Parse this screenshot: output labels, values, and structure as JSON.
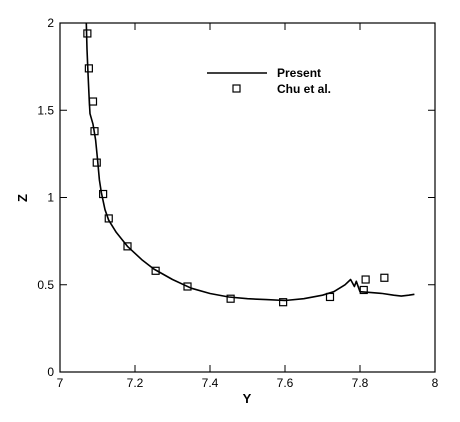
{
  "chart_data": {
    "type": "line",
    "title": "",
    "xlabel": "Y",
    "ylabel": "Z",
    "xlim": [
      7,
      8
    ],
    "ylim": [
      0,
      2
    ],
    "x_ticks": [
      7,
      7.2,
      7.4,
      7.6,
      7.8,
      8
    ],
    "y_ticks": [
      0,
      0.5,
      1,
      1.5,
      2
    ],
    "grid": false,
    "legend_position": "top-right",
    "series": [
      {
        "name": "Present",
        "style": "line",
        "color": "#000000",
        "points": [
          [
            7.07,
            2.0
          ],
          [
            7.072,
            1.85
          ],
          [
            7.075,
            1.7
          ],
          [
            7.078,
            1.55
          ],
          [
            7.08,
            1.48
          ],
          [
            7.088,
            1.42
          ],
          [
            7.095,
            1.33
          ],
          [
            7.1,
            1.22
          ],
          [
            7.105,
            1.1
          ],
          [
            7.11,
            1.03
          ],
          [
            7.12,
            0.93
          ],
          [
            7.13,
            0.87
          ],
          [
            7.15,
            0.8
          ],
          [
            7.18,
            0.72
          ],
          [
            7.22,
            0.64
          ],
          [
            7.25,
            0.59
          ],
          [
            7.3,
            0.53
          ],
          [
            7.35,
            0.48
          ],
          [
            7.4,
            0.45
          ],
          [
            7.45,
            0.43
          ],
          [
            7.5,
            0.42
          ],
          [
            7.55,
            0.415
          ],
          [
            7.6,
            0.41
          ],
          [
            7.65,
            0.42
          ],
          [
            7.7,
            0.44
          ],
          [
            7.73,
            0.46
          ],
          [
            7.76,
            0.5
          ],
          [
            7.775,
            0.53
          ],
          [
            7.785,
            0.49
          ],
          [
            7.79,
            0.52
          ],
          [
            7.8,
            0.46
          ],
          [
            7.83,
            0.455
          ],
          [
            7.86,
            0.45
          ],
          [
            7.89,
            0.44
          ],
          [
            7.91,
            0.435
          ],
          [
            7.93,
            0.44
          ],
          [
            7.945,
            0.445
          ]
        ]
      },
      {
        "name": "Chu et al.",
        "style": "marker-square-open",
        "color": "#000000",
        "points": [
          [
            7.073,
            1.94
          ],
          [
            7.077,
            1.74
          ],
          [
            7.088,
            1.55
          ],
          [
            7.092,
            1.38
          ],
          [
            7.098,
            1.2
          ],
          [
            7.115,
            1.02
          ],
          [
            7.13,
            0.88
          ],
          [
            7.18,
            0.72
          ],
          [
            7.255,
            0.58
          ],
          [
            7.34,
            0.49
          ],
          [
            7.455,
            0.42
          ],
          [
            7.595,
            0.4
          ],
          [
            7.72,
            0.43
          ],
          [
            7.81,
            0.47
          ],
          [
            7.815,
            0.53
          ],
          [
            7.865,
            0.54
          ]
        ]
      }
    ]
  }
}
